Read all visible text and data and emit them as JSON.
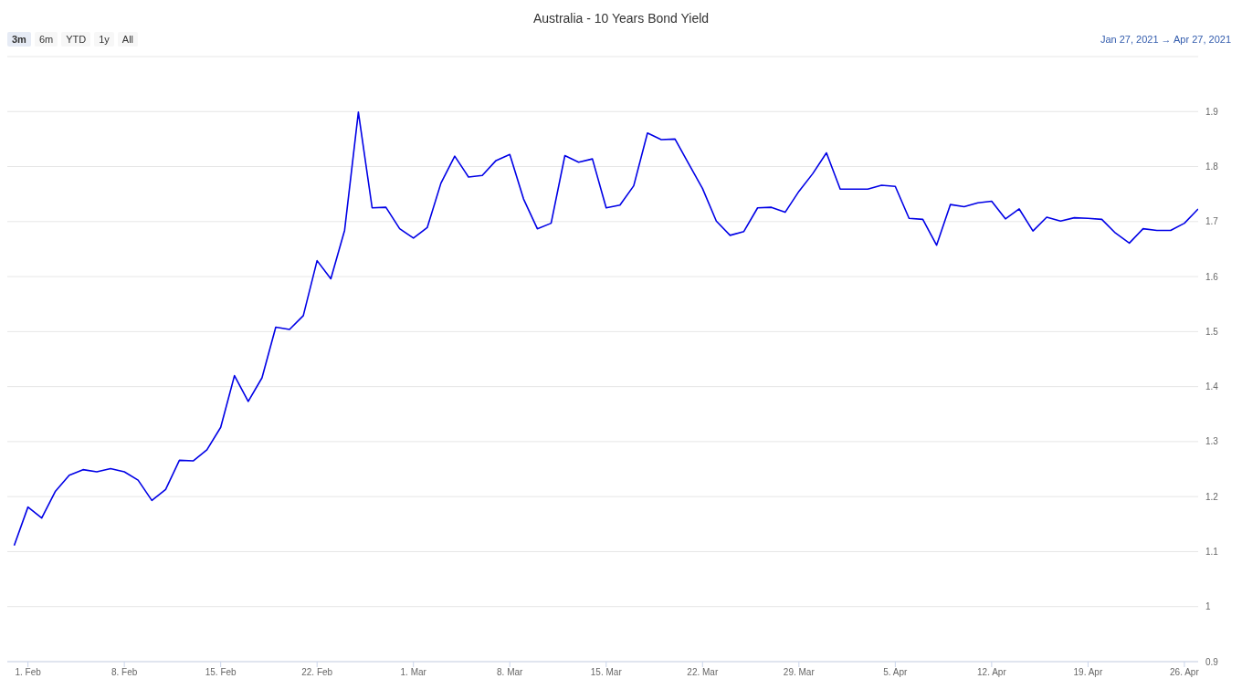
{
  "chart_data": {
    "type": "line",
    "title": "Australia - 10 Years Bond Yield",
    "annotations": [
      "3m",
      "6m",
      "YTD",
      "1y",
      "All",
      "Jan 27, 2021 → Apr 27, 2021"
    ],
    "x": [
      "2021-01-31",
      "2021-02-01",
      "2021-02-02",
      "2021-02-03",
      "2021-02-04",
      "2021-02-05",
      "2021-02-06",
      "2021-02-07",
      "2021-02-08",
      "2021-02-09",
      "2021-02-10",
      "2021-02-11",
      "2021-02-12",
      "2021-02-13",
      "2021-02-14",
      "2021-02-15",
      "2021-02-16",
      "2021-02-17",
      "2021-02-18",
      "2021-02-19",
      "2021-02-20",
      "2021-02-21",
      "2021-02-22",
      "2021-02-23",
      "2021-02-24",
      "2021-02-25",
      "2021-02-26",
      "2021-02-27",
      "2021-02-28",
      "2021-03-01",
      "2021-03-02",
      "2021-03-03",
      "2021-03-04",
      "2021-03-05",
      "2021-03-06",
      "2021-03-07",
      "2021-03-08",
      "2021-03-09",
      "2021-03-10",
      "2021-03-11",
      "2021-03-12",
      "2021-03-13",
      "2021-03-14",
      "2021-03-15",
      "2021-03-16",
      "2021-03-17",
      "2021-03-18",
      "2021-03-19",
      "2021-03-20",
      "2021-03-21",
      "2021-03-22",
      "2021-03-23",
      "2021-03-24",
      "2021-03-25",
      "2021-03-26",
      "2021-03-27",
      "2021-03-28",
      "2021-03-29",
      "2021-03-30",
      "2021-03-31",
      "2021-04-01",
      "2021-04-02",
      "2021-04-03",
      "2021-04-04",
      "2021-04-05",
      "2021-04-06",
      "2021-04-07",
      "2021-04-08",
      "2021-04-09",
      "2021-04-10",
      "2021-04-11",
      "2021-04-12",
      "2021-04-13",
      "2021-04-14",
      "2021-04-15",
      "2021-04-16",
      "2021-04-17",
      "2021-04-18",
      "2021-04-19",
      "2021-04-20",
      "2021-04-21",
      "2021-04-22",
      "2021-04-23",
      "2021-04-24",
      "2021-04-25",
      "2021-04-26",
      "2021-04-27"
    ],
    "series": [
      {
        "color": "#0000e6",
        "values": [
          1.111,
          1.181,
          1.161,
          1.21,
          1.239,
          1.249,
          1.245,
          1.251,
          1.245,
          1.23,
          1.193,
          1.213,
          1.266,
          1.265,
          1.285,
          1.326,
          1.42,
          1.373,
          1.416,
          1.508,
          1.504,
          1.529,
          1.629,
          1.596,
          1.684,
          1.899,
          1.725,
          1.726,
          1.687,
          1.67,
          1.689,
          1.77,
          1.819,
          1.781,
          1.784,
          1.811,
          1.822,
          1.741,
          1.687,
          1.697,
          1.82,
          1.808,
          1.814,
          1.725,
          1.73,
          1.765,
          1.861,
          1.849,
          1.85,
          1.805,
          1.76,
          1.701,
          1.675,
          1.682,
          1.725,
          1.726,
          1.717,
          1.755,
          1.787,
          1.825,
          1.759,
          1.759,
          1.759,
          1.766,
          1.764,
          1.706,
          1.704,
          1.657,
          1.731,
          1.727,
          1.734,
          1.737,
          1.705,
          1.723,
          1.683,
          1.708,
          1.701,
          1.707,
          1.706,
          1.704,
          1.679,
          1.661,
          1.687,
          1.684,
          1.684,
          1.697,
          1.723
        ]
      }
    ],
    "xlim": [
      "2021-01-30T12:00",
      "2021-04-27"
    ],
    "xticks": [
      {
        "value": "2021-02-01",
        "label": "1. Feb"
      },
      {
        "value": "2021-02-08",
        "label": "8. Feb"
      },
      {
        "value": "2021-02-15",
        "label": "15. Feb"
      },
      {
        "value": "2021-02-22",
        "label": "22. Feb"
      },
      {
        "value": "2021-03-01",
        "label": "1. Mar"
      },
      {
        "value": "2021-03-08",
        "label": "8. Mar"
      },
      {
        "value": "2021-03-15",
        "label": "15. Mar"
      },
      {
        "value": "2021-03-22",
        "label": "22. Mar"
      },
      {
        "value": "2021-03-29",
        "label": "29. Mar"
      },
      {
        "value": "2021-04-05",
        "label": "5. Apr"
      },
      {
        "value": "2021-04-12",
        "label": "12. Apr"
      },
      {
        "value": "2021-04-19",
        "label": "19. Apr"
      },
      {
        "value": "2021-04-26",
        "label": "26. Apr"
      }
    ],
    "ylim": [
      0.9,
      2.0
    ],
    "yticks": [
      0.9,
      1,
      1.1,
      1.2,
      1.3,
      1.4,
      1.5,
      1.6,
      1.7,
      1.8,
      1.9
    ],
    "grid": "y"
  }
}
